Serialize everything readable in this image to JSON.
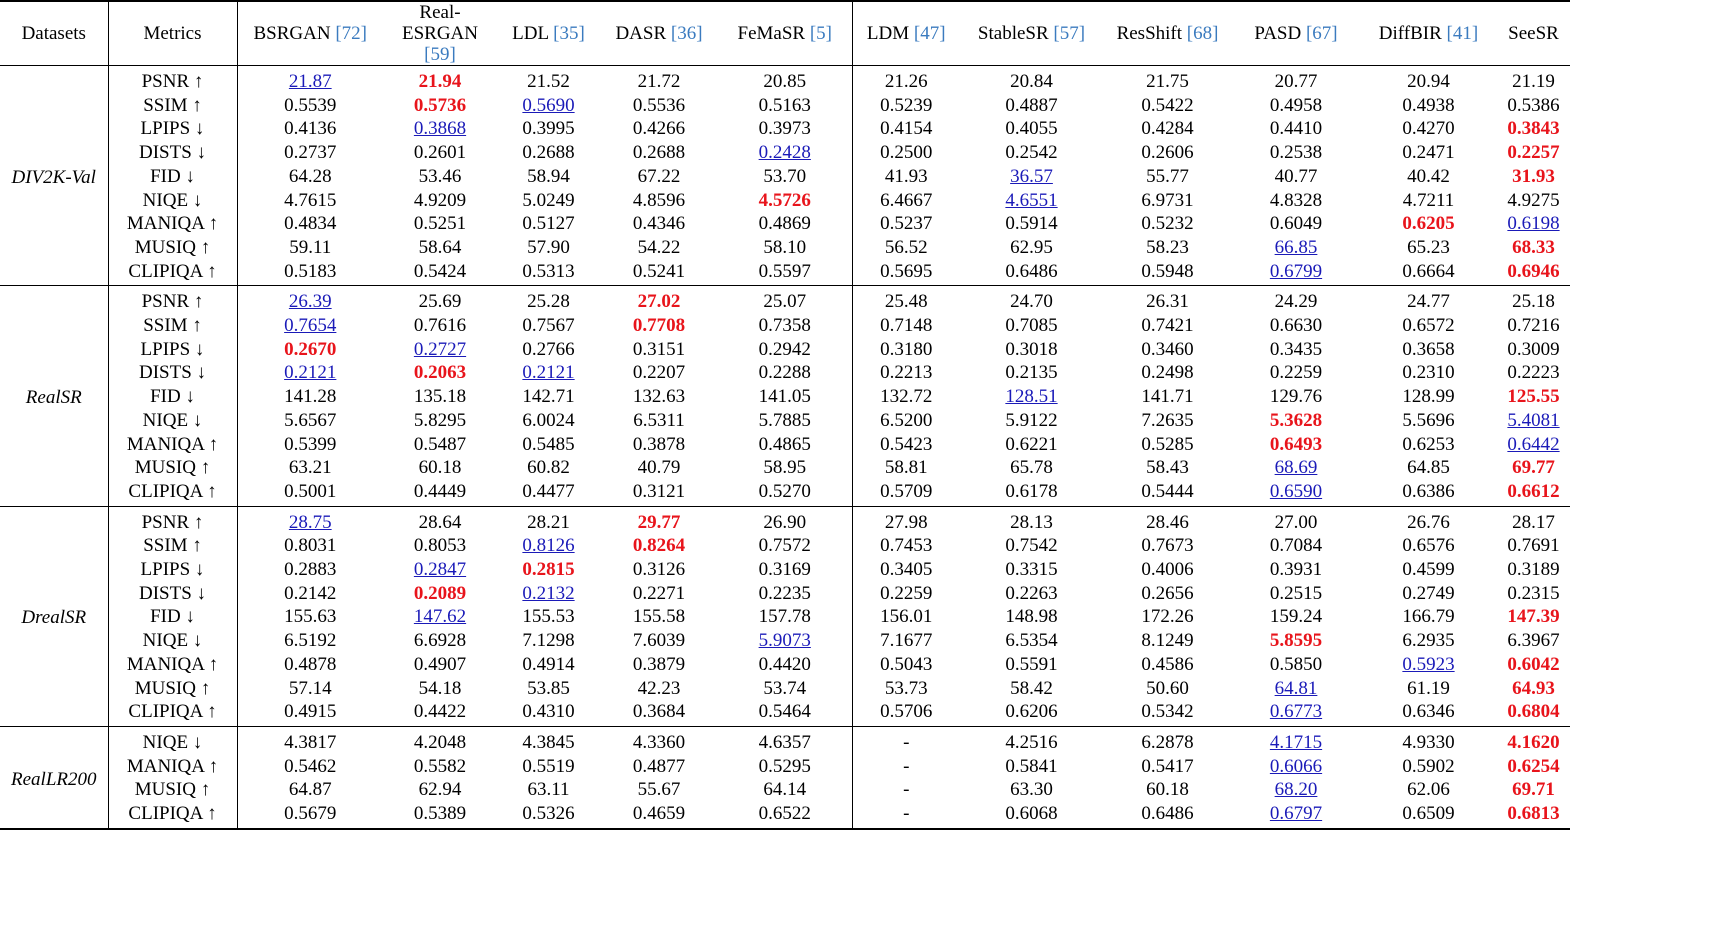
{
  "header": {
    "dataset": "Datasets",
    "metric": "Metrics",
    "methods": [
      {
        "name": "BSRGAN",
        "ref": "[72]"
      },
      {
        "name": "Real-ESRGAN",
        "ref": "[59]"
      },
      {
        "name": "LDL",
        "ref": "[35]"
      },
      {
        "name": "DASR",
        "ref": "[36]"
      },
      {
        "name": "FeMaSR",
        "ref": "[5]"
      },
      {
        "name": "LDM",
        "ref": "[47]"
      },
      {
        "name": "StableSR",
        "ref": "[57]"
      },
      {
        "name": "ResShift",
        "ref": "[68]"
      },
      {
        "name": "PASD",
        "ref": "[67]"
      },
      {
        "name": "DiffBIR",
        "ref": "[41]"
      },
      {
        "name": "SeeSR"
      }
    ]
  },
  "groups": [
    {
      "dataset": "DIV2K-Val",
      "rows": [
        {
          "metric": "PSNR ↑",
          "values": [
            "21.87",
            "21.94",
            "21.52",
            "21.72",
            "20.85",
            "21.26",
            "20.84",
            "21.75",
            "20.77",
            "20.94",
            "21.19"
          ],
          "best": [
            1
          ],
          "second": [
            0
          ]
        },
        {
          "metric": "SSIM ↑",
          "values": [
            "0.5539",
            "0.5736",
            "0.5690",
            "0.5536",
            "0.5163",
            "0.5239",
            "0.4887",
            "0.5422",
            "0.4958",
            "0.4938",
            "0.5386"
          ],
          "best": [
            1
          ],
          "second": [
            2
          ]
        },
        {
          "metric": "LPIPS ↓",
          "values": [
            "0.4136",
            "0.3868",
            "0.3995",
            "0.4266",
            "0.3973",
            "0.4154",
            "0.4055",
            "0.4284",
            "0.4410",
            "0.4270",
            "0.3843"
          ],
          "best": [
            10
          ],
          "second": [
            1
          ]
        },
        {
          "metric": "DISTS ↓",
          "values": [
            "0.2737",
            "0.2601",
            "0.2688",
            "0.2688",
            "0.2428",
            "0.2500",
            "0.2542",
            "0.2606",
            "0.2538",
            "0.2471",
            "0.2257"
          ],
          "best": [
            10
          ],
          "second": [
            4
          ]
        },
        {
          "metric": "FID ↓",
          "values": [
            "64.28",
            "53.46",
            "58.94",
            "67.22",
            "53.70",
            "41.93",
            "36.57",
            "55.77",
            "40.77",
            "40.42",
            "31.93"
          ],
          "best": [
            10
          ],
          "second": [
            6
          ]
        },
        {
          "metric": "NIQE ↓",
          "values": [
            "4.7615",
            "4.9209",
            "5.0249",
            "4.8596",
            "4.5726",
            "6.4667",
            "4.6551",
            "6.9731",
            "4.8328",
            "4.7211",
            "4.9275"
          ],
          "best": [
            4
          ],
          "second": [
            6
          ]
        },
        {
          "metric": "MANIQA ↑",
          "values": [
            "0.4834",
            "0.5251",
            "0.5127",
            "0.4346",
            "0.4869",
            "0.5237",
            "0.5914",
            "0.5232",
            "0.6049",
            "0.6205",
            "0.6198"
          ],
          "best": [
            9
          ],
          "second": [
            10
          ]
        },
        {
          "metric": "MUSIQ ↑",
          "values": [
            "59.11",
            "58.64",
            "57.90",
            "54.22",
            "58.10",
            "56.52",
            "62.95",
            "58.23",
            "66.85",
            "65.23",
            "68.33"
          ],
          "best": [
            10
          ],
          "second": [
            8
          ]
        },
        {
          "metric": "CLIPIQA ↑",
          "values": [
            "0.5183",
            "0.5424",
            "0.5313",
            "0.5241",
            "0.5597",
            "0.5695",
            "0.6486",
            "0.5948",
            "0.6799",
            "0.6664",
            "0.6946"
          ],
          "best": [
            10
          ],
          "second": [
            8
          ]
        }
      ]
    },
    {
      "dataset": "RealSR",
      "rows": [
        {
          "metric": "PSNR ↑",
          "values": [
            "26.39",
            "25.69",
            "25.28",
            "27.02",
            "25.07",
            "25.48",
            "24.70",
            "26.31",
            "24.29",
            "24.77",
            "25.18"
          ],
          "best": [
            3
          ],
          "second": [
            0
          ]
        },
        {
          "metric": "SSIM ↑",
          "values": [
            "0.7654",
            "0.7616",
            "0.7567",
            "0.7708",
            "0.7358",
            "0.7148",
            "0.7085",
            "0.7421",
            "0.6630",
            "0.6572",
            "0.7216"
          ],
          "best": [
            3
          ],
          "second": [
            0
          ]
        },
        {
          "metric": "LPIPS ↓",
          "values": [
            "0.2670",
            "0.2727",
            "0.2766",
            "0.3151",
            "0.2942",
            "0.3180",
            "0.3018",
            "0.3460",
            "0.3435",
            "0.3658",
            "0.3009"
          ],
          "best": [
            0
          ],
          "second": [
            1
          ]
        },
        {
          "metric": "DISTS ↓",
          "values": [
            "0.2121",
            "0.2063",
            "0.2121",
            "0.2207",
            "0.2288",
            "0.2213",
            "0.2135",
            "0.2498",
            "0.2259",
            "0.2310",
            "0.2223"
          ],
          "best": [
            1
          ],
          "second": [
            0,
            2
          ]
        },
        {
          "metric": "FID ↓",
          "values": [
            "141.28",
            "135.18",
            "142.71",
            "132.63",
            "141.05",
            "132.72",
            "128.51",
            "141.71",
            "129.76",
            "128.99",
            "125.55"
          ],
          "best": [
            10
          ],
          "second": [
            6
          ]
        },
        {
          "metric": "NIQE ↓",
          "values": [
            "5.6567",
            "5.8295",
            "6.0024",
            "6.5311",
            "5.7885",
            "6.5200",
            "5.9122",
            "7.2635",
            "5.3628",
            "5.5696",
            "5.4081"
          ],
          "best": [
            8
          ],
          "second": [
            10
          ]
        },
        {
          "metric": "MANIQA ↑",
          "values": [
            "0.5399",
            "0.5487",
            "0.5485",
            "0.3878",
            "0.4865",
            "0.5423",
            "0.6221",
            "0.5285",
            "0.6493",
            "0.6253",
            "0.6442"
          ],
          "best": [
            8
          ],
          "second": [
            10
          ]
        },
        {
          "metric": "MUSIQ ↑",
          "values": [
            "63.21",
            "60.18",
            "60.82",
            "40.79",
            "58.95",
            "58.81",
            "65.78",
            "58.43",
            "68.69",
            "64.85",
            "69.77"
          ],
          "best": [
            10
          ],
          "second": [
            8
          ]
        },
        {
          "metric": "CLIPIQA ↑",
          "values": [
            "0.5001",
            "0.4449",
            "0.4477",
            "0.3121",
            "0.5270",
            "0.5709",
            "0.6178",
            "0.5444",
            "0.6590",
            "0.6386",
            "0.6612"
          ],
          "best": [
            10
          ],
          "second": [
            8
          ]
        }
      ]
    },
    {
      "dataset": "DrealSR",
      "rows": [
        {
          "metric": "PSNR ↑",
          "values": [
            "28.75",
            "28.64",
            "28.21",
            "29.77",
            "26.90",
            "27.98",
            "28.13",
            "28.46",
            "27.00",
            "26.76",
            "28.17"
          ],
          "best": [
            3
          ],
          "second": [
            0
          ]
        },
        {
          "metric": "SSIM ↑",
          "values": [
            "0.8031",
            "0.8053",
            "0.8126",
            "0.8264",
            "0.7572",
            "0.7453",
            "0.7542",
            "0.7673",
            "0.7084",
            "0.6576",
            "0.7691"
          ],
          "best": [
            3
          ],
          "second": [
            2
          ]
        },
        {
          "metric": "LPIPS ↓",
          "values": [
            "0.2883",
            "0.2847",
            "0.2815",
            "0.3126",
            "0.3169",
            "0.3405",
            "0.3315",
            "0.4006",
            "0.3931",
            "0.4599",
            "0.3189"
          ],
          "best": [
            2
          ],
          "second": [
            1
          ]
        },
        {
          "metric": "DISTS ↓",
          "values": [
            "0.2142",
            "0.2089",
            "0.2132",
            "0.2271",
            "0.2235",
            "0.2259",
            "0.2263",
            "0.2656",
            "0.2515",
            "0.2749",
            "0.2315"
          ],
          "best": [
            1
          ],
          "second": [
            2
          ]
        },
        {
          "metric": "FID ↓",
          "values": [
            "155.63",
            "147.62",
            "155.53",
            "155.58",
            "157.78",
            "156.01",
            "148.98",
            "172.26",
            "159.24",
            "166.79",
            "147.39"
          ],
          "best": [
            10
          ],
          "second": [
            1
          ]
        },
        {
          "metric": "NIQE ↓",
          "values": [
            "6.5192",
            "6.6928",
            "7.1298",
            "7.6039",
            "5.9073",
            "7.1677",
            "6.5354",
            "8.1249",
            "5.8595",
            "6.2935",
            "6.3967"
          ],
          "best": [
            8
          ],
          "second": [
            4
          ]
        },
        {
          "metric": "MANIQA ↑",
          "values": [
            "0.4878",
            "0.4907",
            "0.4914",
            "0.3879",
            "0.4420",
            "0.5043",
            "0.5591",
            "0.4586",
            "0.5850",
            "0.5923",
            "0.6042"
          ],
          "best": [
            10
          ],
          "second": [
            9
          ]
        },
        {
          "metric": "MUSIQ ↑",
          "values": [
            "57.14",
            "54.18",
            "53.85",
            "42.23",
            "53.74",
            "53.73",
            "58.42",
            "50.60",
            "64.81",
            "61.19",
            "64.93"
          ],
          "best": [
            10
          ],
          "second": [
            8
          ]
        },
        {
          "metric": "CLIPIQA ↑",
          "values": [
            "0.4915",
            "0.4422",
            "0.4310",
            "0.3684",
            "0.5464",
            "0.5706",
            "0.6206",
            "0.5342",
            "0.6773",
            "0.6346",
            "0.6804"
          ],
          "best": [
            10
          ],
          "second": [
            8
          ]
        }
      ]
    },
    {
      "dataset": "RealLR200",
      "rows": [
        {
          "metric": "NIQE ↓",
          "values": [
            "4.3817",
            "4.2048",
            "4.3845",
            "4.3360",
            "4.6357",
            "-",
            "4.2516",
            "6.2878",
            "4.1715",
            "4.9330",
            "4.1620"
          ],
          "best": [
            10
          ],
          "second": [
            8
          ]
        },
        {
          "metric": "MANIQA ↑",
          "values": [
            "0.5462",
            "0.5582",
            "0.5519",
            "0.4877",
            "0.5295",
            "-",
            "0.5841",
            "0.5417",
            "0.6066",
            "0.5902",
            "0.6254"
          ],
          "best": [
            10
          ],
          "second": [
            8
          ]
        },
        {
          "metric": "MUSIQ ↑",
          "values": [
            "64.87",
            "62.94",
            "63.11",
            "55.67",
            "64.14",
            "-",
            "63.30",
            "60.18",
            "68.20",
            "62.06",
            "69.71"
          ],
          "best": [
            10
          ],
          "second": [
            8
          ]
        },
        {
          "metric": "CLIPIQA ↑",
          "values": [
            "0.5679",
            "0.5389",
            "0.5326",
            "0.4659",
            "0.6522",
            "-",
            "0.6068",
            "0.6486",
            "0.6797",
            "0.6509",
            "0.6813"
          ],
          "best": [
            10
          ],
          "second": [
            8
          ]
        }
      ]
    }
  ]
}
